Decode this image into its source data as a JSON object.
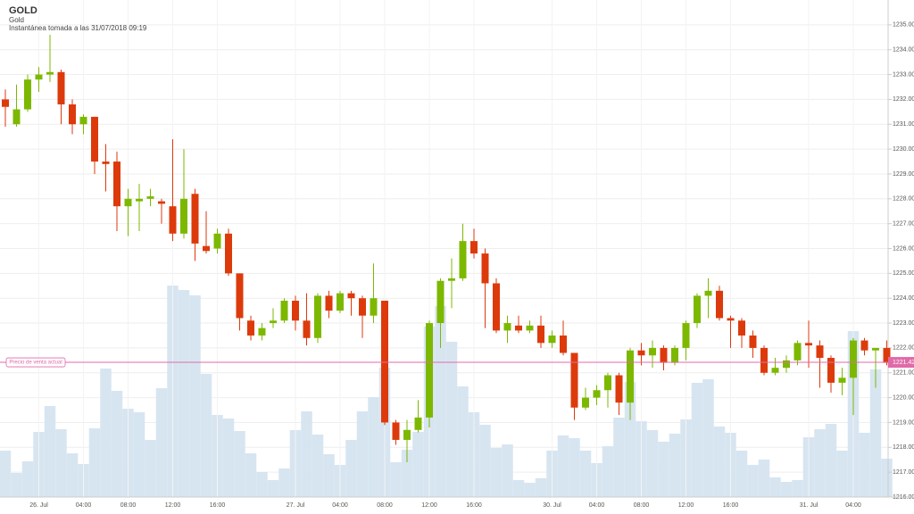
{
  "chart_data": {
    "type": "candlestick",
    "title": "GOLD",
    "subtitle": "Gold",
    "note": "Instantánea tomada a las 31/07/2018 09:19",
    "categories": [
      null,
      null,
      null,
      "26. Jul",
      null,
      null,
      null,
      "04:00",
      null,
      null,
      null,
      "08:00",
      null,
      null,
      null,
      "12:00",
      null,
      null,
      null,
      "16:00",
      null,
      null,
      null,
      null,
      null,
      null,
      "27. Jul",
      null,
      null,
      null,
      "04:00",
      null,
      null,
      null,
      "08:00",
      null,
      null,
      null,
      "12:00",
      null,
      null,
      null,
      "16:00",
      null,
      null,
      null,
      null,
      null,
      null,
      "30. Jul",
      null,
      null,
      null,
      "04:00",
      null,
      null,
      null,
      "08:00",
      null,
      null,
      null,
      "12:00",
      null,
      null,
      null,
      "16:00",
      null,
      null,
      null,
      null,
      null,
      null,
      "31. Jul",
      null,
      null,
      null,
      "04:00",
      null,
      null,
      null
    ],
    "open": [
      1232.0,
      1231.0,
      1231.6,
      1232.8,
      1233.0,
      1233.1,
      1231.8,
      1231.0,
      1231.3,
      1229.5,
      1229.5,
      1227.7,
      1227.9,
      1228.0,
      1227.9,
      1227.7,
      1226.6,
      1228.2,
      1226.1,
      1226.0,
      1226.6,
      1225.0,
      1223.1,
      1222.5,
      1223.0,
      1223.1,
      1223.9,
      1223.1,
      1222.4,
      1224.1,
      1223.5,
      1224.2,
      1224.0,
      1223.3,
      1223.9,
      1219.0,
      1218.3,
      1218.7,
      1219.2,
      1223.0,
      1224.7,
      1224.8,
      1226.3,
      1225.8,
      1224.6,
      1222.7,
      1222.9,
      1222.7,
      1222.9,
      1222.2,
      1222.5,
      1221.8,
      1219.6,
      1220.0,
      1220.3,
      1220.9,
      1219.8,
      1221.9,
      1221.7,
      1222.0,
      1221.4,
      1222.0,
      1223.0,
      1224.1,
      1224.3,
      1223.2,
      1223.1,
      1222.5,
      1222.0,
      1221.0,
      1221.2,
      1221.5,
      1222.2,
      1222.1,
      1221.6,
      1220.6,
      1220.8,
      1222.3,
      1221.9,
      1222.0
    ],
    "high": [
      1232.4,
      1232.6,
      1233.0,
      1233.3,
      1234.6,
      1233.2,
      1232.0,
      1231.4,
      1231.3,
      1230.2,
      1229.9,
      1228.4,
      1228.6,
      1228.4,
      1228.0,
      1230.4,
      1230.0,
      1228.4,
      1227.5,
      1226.8,
      1226.8,
      1225.0,
      1223.3,
      1223.0,
      1223.6,
      1224.0,
      1224.1,
      1224.2,
      1224.2,
      1224.3,
      1224.3,
      1224.3,
      1224.1,
      1225.4,
      1223.9,
      1219.1,
      1219.1,
      1219.9,
      1223.1,
      1224.8,
      1225.6,
      1227.0,
      1226.8,
      1226.0,
      1224.8,
      1223.3,
      1223.3,
      1223.1,
      1223.3,
      1222.7,
      1223.1,
      1221.8,
      1220.4,
      1220.5,
      1221.0,
      1221.0,
      1222.0,
      1222.2,
      1222.3,
      1222.1,
      1222.1,
      1223.1,
      1224.2,
      1224.8,
      1224.5,
      1223.3,
      1223.2,
      1222.7,
      1222.1,
      1221.6,
      1221.7,
      1222.3,
      1223.1,
      1222.3,
      1221.7,
      1221.2,
      1222.4,
      1222.4,
      1222.0,
      1222.3
    ],
    "low": [
      1230.9,
      1230.9,
      1231.5,
      1232.3,
      1232.7,
      1231.0,
      1230.6,
      1230.6,
      1229.0,
      1228.3,
      1226.7,
      1226.5,
      1226.7,
      1227.7,
      1227.0,
      1226.3,
      1226.4,
      1225.5,
      1225.8,
      1225.8,
      1224.9,
      1222.7,
      1222.3,
      1222.3,
      1222.8,
      1223.0,
      1222.7,
      1222.1,
      1222.2,
      1223.2,
      1223.4,
      1223.3,
      1222.4,
      1223.0,
      1218.9,
      1218.1,
      1217.4,
      1218.6,
      1218.8,
      1222.0,
      1223.6,
      1224.7,
      1225.6,
      1222.8,
      1222.6,
      1222.2,
      1222.6,
      1222.6,
      1222.0,
      1222.0,
      1221.7,
      1219.1,
      1219.5,
      1219.7,
      1219.6,
      1219.3,
      1219.1,
      1221.3,
      1221.2,
      1221.1,
      1221.3,
      1221.5,
      1222.8,
      1223.2,
      1223.1,
      1222.0,
      1222.0,
      1221.6,
      1220.9,
      1220.9,
      1221.0,
      1221.3,
      1221.2,
      1220.4,
      1220.2,
      1220.1,
      1219.3,
      1221.7,
      1220.4,
      1221.3
    ],
    "close": [
      1231.7,
      1231.6,
      1232.8,
      1233.0,
      1233.1,
      1231.8,
      1231.0,
      1231.3,
      1229.5,
      1229.4,
      1227.7,
      1228.0,
      1228.0,
      1228.1,
      1227.8,
      1226.6,
      1228.0,
      1226.2,
      1225.9,
      1226.6,
      1225.0,
      1223.2,
      1222.5,
      1222.8,
      1223.1,
      1223.9,
      1223.1,
      1222.4,
      1224.1,
      1223.5,
      1224.2,
      1224.0,
      1223.3,
      1224.0,
      1219.0,
      1218.3,
      1218.7,
      1219.2,
      1223.0,
      1224.7,
      1224.8,
      1226.3,
      1225.8,
      1224.6,
      1222.7,
      1223.0,
      1222.7,
      1222.9,
      1222.2,
      1222.5,
      1221.8,
      1219.6,
      1220.0,
      1220.3,
      1220.9,
      1219.8,
      1221.9,
      1221.7,
      1222.0,
      1221.4,
      1222.0,
      1223.0,
      1224.1,
      1224.3,
      1223.2,
      1223.1,
      1222.5,
      1222.0,
      1221.0,
      1221.2,
      1221.5,
      1222.2,
      1222.1,
      1221.6,
      1220.6,
      1220.8,
      1222.3,
      1221.9,
      1222.0,
      1221.4
    ],
    "volume": [
      52,
      27,
      40,
      73,
      102,
      76,
      49,
      37,
      77,
      144,
      119,
      99,
      95,
      64,
      122,
      237,
      232,
      226,
      138,
      92,
      88,
      74,
      49,
      28,
      19,
      32,
      75,
      96,
      70,
      48,
      36,
      64,
      96,
      112,
      145,
      39,
      53,
      73,
      191,
      214,
      174,
      124,
      95,
      81,
      55,
      59,
      19,
      16,
      21,
      52,
      69,
      66,
      52,
      38,
      57,
      89,
      129,
      85,
      75,
      62,
      71,
      87,
      128,
      132,
      79,
      72,
      52,
      36,
      42,
      22,
      17,
      19,
      67,
      76,
      82,
      52,
      186,
      72,
      143,
      43
    ],
    "volume_lim": [
      0,
      260
    ],
    "up_color": "#7cb800",
    "down_color": "#dd3a0c",
    "volume_color": "#d7e5f1",
    "ylim": [
      1216,
      1236
    ],
    "yticks": [
      {
        "value": 1216,
        "label": "1216.00"
      },
      {
        "value": 1217,
        "label": "1217.00"
      },
      {
        "value": 1218,
        "label": "1218.00"
      },
      {
        "value": 1219,
        "label": "1219.00"
      },
      {
        "value": 1220,
        "label": "1220.00"
      },
      {
        "value": 1221,
        "label": "1221.00"
      },
      {
        "value": 1222,
        "label": "1222.00"
      },
      {
        "value": 1223,
        "label": "1223.00"
      },
      {
        "value": 1224,
        "label": "1224.00"
      },
      {
        "value": 1225,
        "label": "1225.00"
      },
      {
        "value": 1226,
        "label": "1226.00"
      },
      {
        "value": 1227,
        "label": "1227.00"
      },
      {
        "value": 1228,
        "label": "1228.00"
      },
      {
        "value": 1229,
        "label": "1229.00"
      },
      {
        "value": 1230,
        "label": "1230.00"
      },
      {
        "value": 1231,
        "label": "1231.00"
      },
      {
        "value": 1232,
        "label": "1232.00"
      },
      {
        "value": 1233,
        "label": "1233.00"
      },
      {
        "value": 1234,
        "label": "1234.00"
      },
      {
        "value": 1235,
        "label": "1235.00"
      }
    ],
    "grid": true,
    "current_price": {
      "label": "Precio de venta actual",
      "value": 1221.42,
      "color": "#e06aa8"
    }
  }
}
